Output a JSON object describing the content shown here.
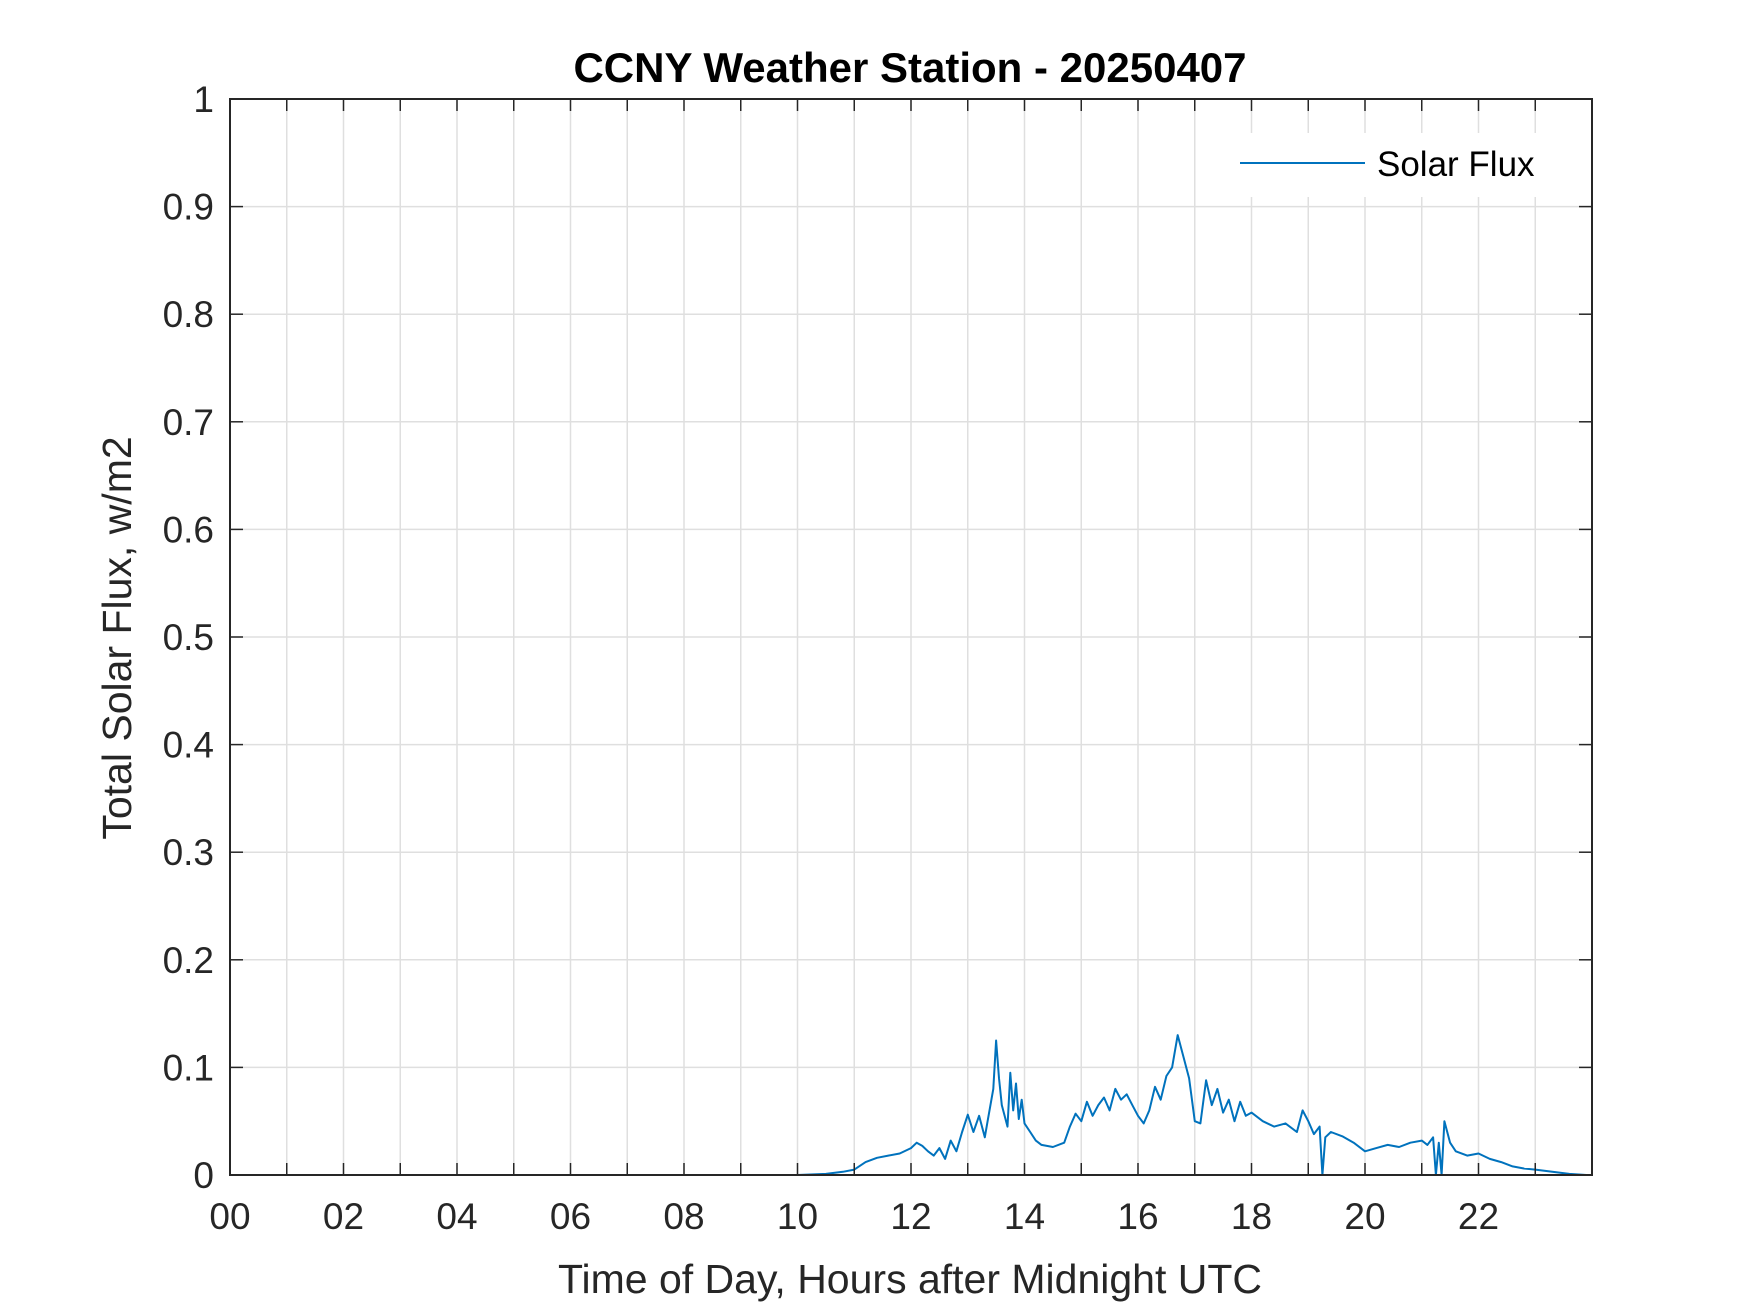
{
  "chart_data": {
    "type": "line",
    "title": "CCNY Weather Station - 20250407",
    "xlabel": "Time of Day, Hours after Midnight UTC",
    "ylabel": "Total Solar Flux, w/m2",
    "xlim": [
      0,
      24
    ],
    "ylim": [
      0,
      1
    ],
    "x_ticks": [
      0,
      2,
      4,
      6,
      8,
      10,
      12,
      14,
      16,
      18,
      20,
      22
    ],
    "x_tick_labels": [
      "00",
      "02",
      "04",
      "06",
      "08",
      "10",
      "12",
      "14",
      "16",
      "18",
      "20",
      "22"
    ],
    "y_ticks": [
      0,
      0.1,
      0.2,
      0.3,
      0.4,
      0.5,
      0.6,
      0.7,
      0.8,
      0.9,
      1
    ],
    "y_tick_labels": [
      "0",
      "0.1",
      "0.2",
      "0.3",
      "0.4",
      "0.5",
      "0.6",
      "0.7",
      "0.8",
      "0.9",
      "1"
    ],
    "grid": true,
    "legend_position": "top-right",
    "colors": {
      "series": "#0072BD",
      "grid": "#DFDFDF",
      "axes": "#262626"
    },
    "series": [
      {
        "name": "Solar Flux",
        "x": [
          0,
          10.0,
          10.5,
          10.8,
          11.0,
          11.2,
          11.4,
          11.6,
          11.8,
          12.0,
          12.1,
          12.2,
          12.3,
          12.4,
          12.5,
          12.6,
          12.7,
          12.8,
          12.9,
          13.0,
          13.1,
          13.2,
          13.3,
          13.35,
          13.45,
          13.5,
          13.55,
          13.6,
          13.7,
          13.75,
          13.8,
          13.85,
          13.9,
          13.95,
          14.0,
          14.1,
          14.2,
          14.3,
          14.5,
          14.7,
          14.8,
          14.9,
          15.0,
          15.1,
          15.2,
          15.3,
          15.4,
          15.5,
          15.6,
          15.7,
          15.8,
          15.9,
          16.0,
          16.1,
          16.2,
          16.3,
          16.4,
          16.5,
          16.6,
          16.7,
          16.8,
          16.9,
          17.0,
          17.1,
          17.2,
          17.3,
          17.4,
          17.5,
          17.6,
          17.7,
          17.8,
          17.9,
          18.0,
          18.2,
          18.4,
          18.6,
          18.8,
          18.9,
          19.0,
          19.1,
          19.2,
          19.25,
          19.3,
          19.4,
          19.6,
          19.8,
          20.0,
          20.2,
          20.4,
          20.6,
          20.8,
          21.0,
          21.1,
          21.2,
          21.25,
          21.3,
          21.35,
          21.4,
          21.5,
          21.6,
          21.8,
          22.0,
          22.2,
          22.4,
          22.6,
          22.8,
          23.0,
          23.3,
          23.6,
          23.9
        ],
        "values": [
          0.0,
          0.0,
          0.001,
          0.003,
          0.005,
          0.012,
          0.016,
          0.018,
          0.02,
          0.025,
          0.03,
          0.027,
          0.022,
          0.018,
          0.025,
          0.015,
          0.032,
          0.022,
          0.04,
          0.056,
          0.04,
          0.055,
          0.035,
          0.05,
          0.08,
          0.125,
          0.09,
          0.065,
          0.045,
          0.095,
          0.06,
          0.085,
          0.052,
          0.07,
          0.048,
          0.04,
          0.032,
          0.028,
          0.026,
          0.03,
          0.045,
          0.057,
          0.05,
          0.068,
          0.055,
          0.065,
          0.072,
          0.06,
          0.08,
          0.07,
          0.075,
          0.065,
          0.055,
          0.048,
          0.06,
          0.082,
          0.07,
          0.092,
          0.1,
          0.13,
          0.11,
          0.09,
          0.05,
          0.048,
          0.088,
          0.065,
          0.08,
          0.058,
          0.07,
          0.05,
          0.068,
          0.055,
          0.058,
          0.05,
          0.045,
          0.048,
          0.04,
          0.06,
          0.05,
          0.038,
          0.045,
          0.0,
          0.035,
          0.04,
          0.036,
          0.03,
          0.022,
          0.025,
          0.028,
          0.026,
          0.03,
          0.032,
          0.028,
          0.035,
          0.0,
          0.03,
          0.0,
          0.05,
          0.03,
          0.022,
          0.018,
          0.02,
          0.015,
          0.012,
          0.008,
          0.006,
          0.005,
          0.003,
          0.001,
          0.0
        ]
      }
    ]
  }
}
